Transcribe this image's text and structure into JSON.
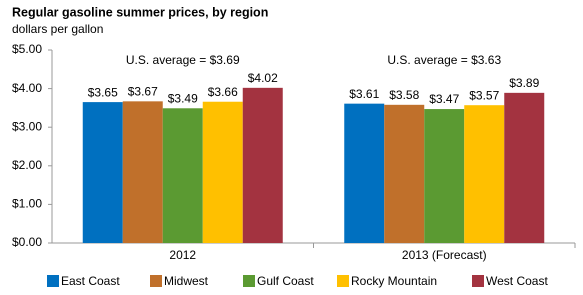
{
  "chart_data": {
    "type": "bar",
    "title": "Regular gasoline summer prices, by region",
    "subtitle": "dollars per gallon",
    "categories": [
      "2012",
      "2013 (Forecast)"
    ],
    "annotations": [
      "U.S. average = $3.69",
      "U.S. average = $3.63"
    ],
    "series": [
      {
        "name": "East Coast",
        "color": "#0070c0",
        "values": [
          3.65,
          3.61
        ],
        "value_labels": [
          "$3.65",
          "$3.61"
        ]
      },
      {
        "name": "Midwest",
        "color": "#c0702b",
        "values": [
          3.67,
          3.58
        ],
        "value_labels": [
          "$3.67",
          "$3.58"
        ]
      },
      {
        "name": "Gulf Coast",
        "color": "#5b9a32",
        "values": [
          3.49,
          3.47
        ],
        "value_labels": [
          "$3.49",
          "$3.47"
        ]
      },
      {
        "name": "Rocky Mountain",
        "color": "#ffc000",
        "values": [
          3.66,
          3.57
        ],
        "value_labels": [
          "$3.66",
          "$3.57"
        ]
      },
      {
        "name": "West Coast",
        "color": "#a33340",
        "values": [
          4.02,
          3.89
        ],
        "value_labels": [
          "$4.02",
          "$3.89"
        ]
      }
    ],
    "ylim": [
      0,
      5
    ],
    "yticks": [
      {
        "value": 0,
        "label": "$0.00"
      },
      {
        "value": 1,
        "label": "$1.00"
      },
      {
        "value": 2,
        "label": "$2.00"
      },
      {
        "value": 3,
        "label": "$3.00"
      },
      {
        "value": 4,
        "label": "$4.00"
      },
      {
        "value": 5,
        "label": "$5.00"
      }
    ],
    "grid": false,
    "legend": "bottom"
  }
}
